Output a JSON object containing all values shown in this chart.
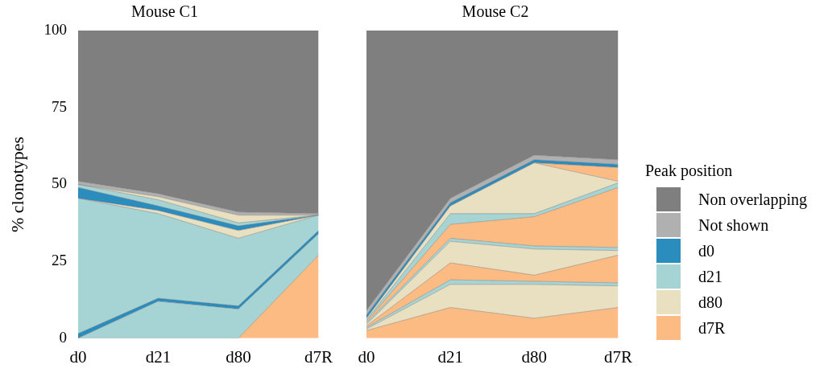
{
  "chart_data": [
    {
      "type": "area",
      "title": "Mouse C1",
      "ylabel": "% clonotypes",
      "categories": [
        "d0",
        "d21",
        "d80",
        "d7R"
      ],
      "stacked": true,
      "ylim": [
        0,
        100
      ],
      "yticks": [
        0,
        25,
        50,
        75,
        100
      ],
      "grid": false,
      "legend": false,
      "series": [
        {
          "color": "#fdbb84",
          "values": [
            0,
            0,
            0,
            27
          ]
        },
        {
          "color": "#a6d4d4",
          "values": [
            0,
            12,
            9.5,
            7
          ]
        },
        {
          "color": "#2b8cbe",
          "values": [
            1.5,
            1,
            1,
            1
          ]
        },
        {
          "color": "#a6d4d4",
          "values": [
            44,
            27.5,
            22,
            5
          ]
        },
        {
          "color": "#e8e0c0",
          "values": [
            0,
            1,
            2.5,
            0
          ]
        },
        {
          "color": "#2b8cbe",
          "values": [
            3.5,
            1.5,
            1.5,
            0
          ]
        },
        {
          "color": "#a6d4d4",
          "values": [
            1,
            2,
            1,
            0
          ]
        },
        {
          "color": "#e8e0c0",
          "values": [
            0,
            1,
            2.5,
            0
          ]
        },
        {
          "color": "#b0b0b0",
          "values": [
            1,
            1,
            1,
            0.5
          ]
        },
        {
          "color": "#7f7f7f",
          "values": [
            49,
            53,
            59,
            59.5
          ]
        }
      ]
    },
    {
      "type": "area",
      "title": "Mouse C2",
      "legend_title": "Peak position",
      "categories": [
        "d0",
        "d21",
        "d80",
        "d7R"
      ],
      "stacked": true,
      "ylim": [
        0,
        100
      ],
      "yticks": [
        0,
        25,
        50,
        75,
        100
      ],
      "tick_labels": "x",
      "grid": false,
      "legend": "right",
      "series": [
        {
          "name": "d7R",
          "color": "#fdbb84",
          "values": [
            2.5,
            10,
            6.5,
            10
          ]
        },
        {
          "color": "#e8e0c0",
          "values": [
            0.5,
            7.5,
            11,
            7
          ]
        },
        {
          "color": "#a6d4d4",
          "values": [
            0.5,
            1.5,
            1,
            1
          ]
        },
        {
          "color": "#fdbb84",
          "values": [
            0.5,
            5.5,
            2,
            9
          ]
        },
        {
          "name": "d80",
          "color": "#e8e0c0",
          "values": [
            0.5,
            7,
            8.5,
            1.5
          ]
        },
        {
          "color": "#a6d4d4",
          "values": [
            0.5,
            1,
            1,
            1
          ]
        },
        {
          "color": "#fdbb84",
          "values": [
            0.5,
            4.5,
            9.5,
            19.5
          ]
        },
        {
          "name": "d21",
          "color": "#a6d4d4",
          "values": [
            0.5,
            3.5,
            1,
            1.5
          ]
        },
        {
          "color": "#e8e0c0",
          "values": [
            0.5,
            2.5,
            16.5,
            0.5
          ]
        },
        {
          "color": "#fdbb84",
          "values": [
            0,
            0,
            0,
            4.5
          ]
        },
        {
          "name": "d0",
          "color": "#2b8cbe",
          "values": [
            1,
            1,
            1,
            1
          ]
        },
        {
          "name": "Not shown",
          "color": "#b0b0b0",
          "values": [
            1.5,
            1.5,
            1.5,
            1.5
          ]
        },
        {
          "name": "Non overlapping",
          "color": "#7f7f7f",
          "values": [
            91,
            54.5,
            40.5,
            42
          ]
        }
      ]
    }
  ]
}
